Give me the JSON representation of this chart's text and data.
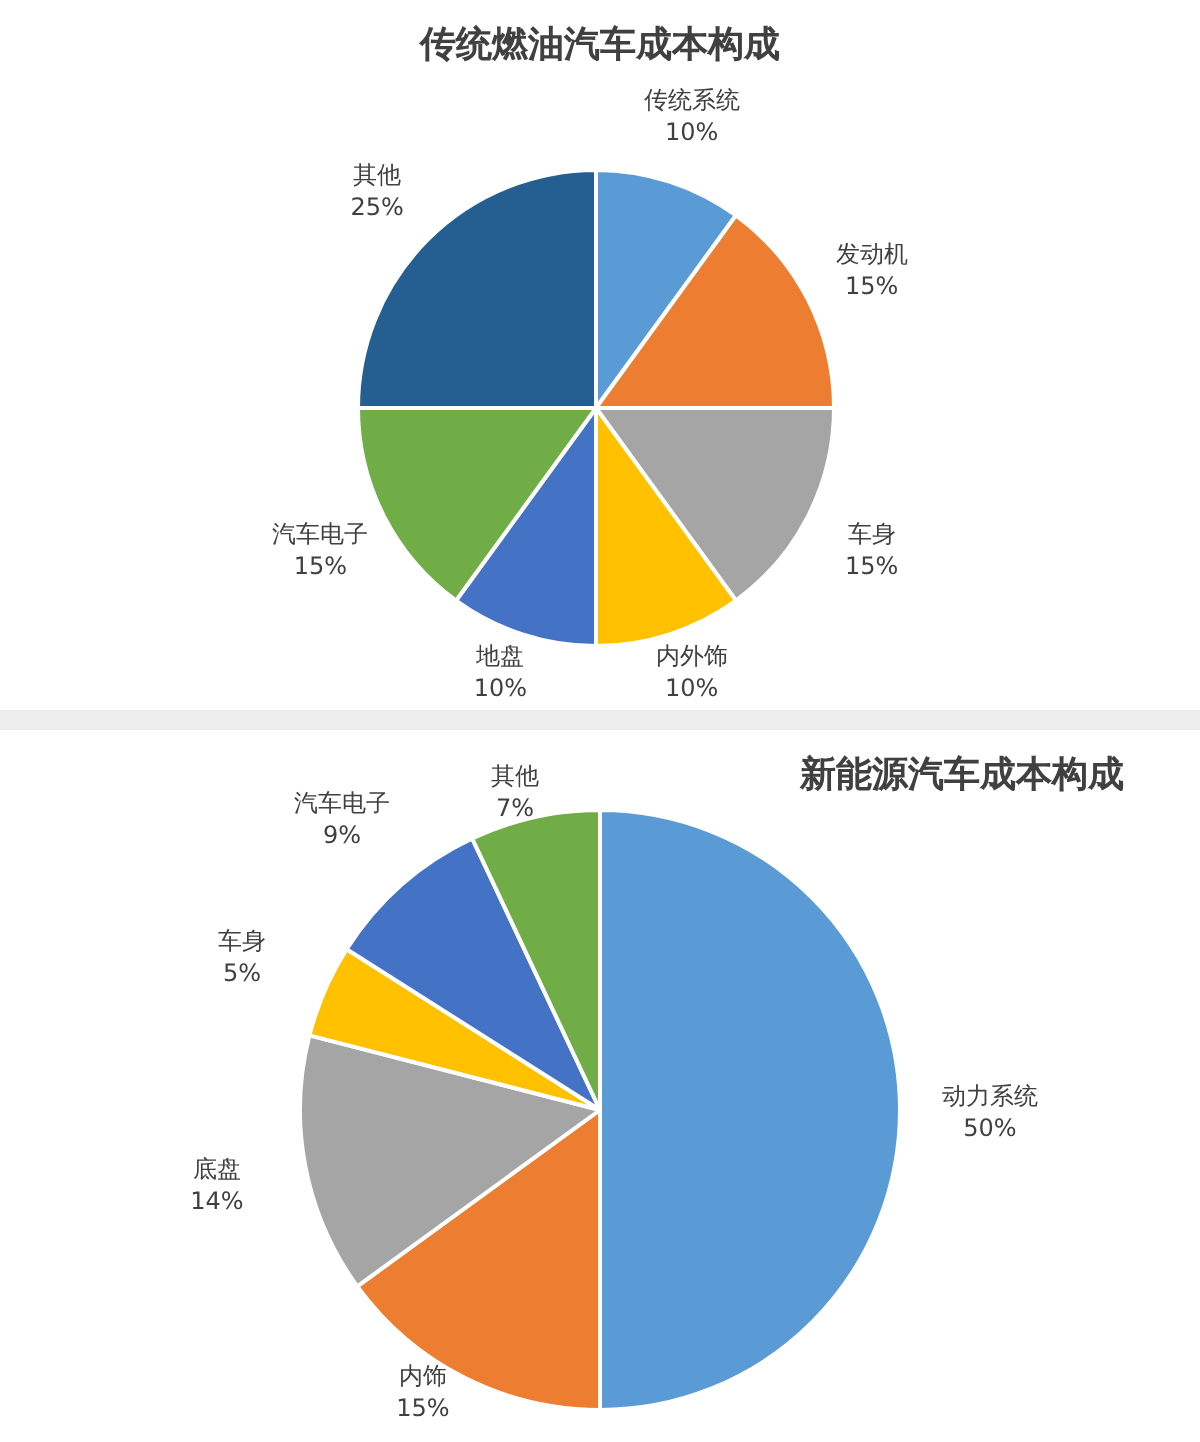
{
  "chart_data": [
    {
      "type": "pie",
      "title": "传统燃油汽车成本构成",
      "categories": [
        "传统系统",
        "发动机",
        "车身",
        "内外饰",
        "地盘",
        "汽车电子",
        "其他"
      ],
      "values": [
        10,
        15,
        15,
        10,
        10,
        15,
        25
      ],
      "colors": [
        "#5b9bd5",
        "#ed7d31",
        "#a5a5a5",
        "#ffc000",
        "#4472c4",
        "#70ad47",
        "#255e91"
      ],
      "value_labels": [
        "10%",
        "15%",
        "15%",
        "10%",
        "10%",
        "15%",
        "25%"
      ]
    },
    {
      "type": "pie",
      "title": "新能源汽车成本构成",
      "categories": [
        "动力系统",
        "内饰",
        "底盘",
        "车身",
        "汽车电子",
        "其他"
      ],
      "values": [
        50,
        15,
        14,
        5,
        9,
        7
      ],
      "colors": [
        "#5b9bd5",
        "#ed7d31",
        "#a5a5a5",
        "#ffc000",
        "#4472c4",
        "#70ad47"
      ],
      "value_labels": [
        "50%",
        "15%",
        "14%",
        "5%",
        "9%",
        "7%"
      ]
    }
  ]
}
